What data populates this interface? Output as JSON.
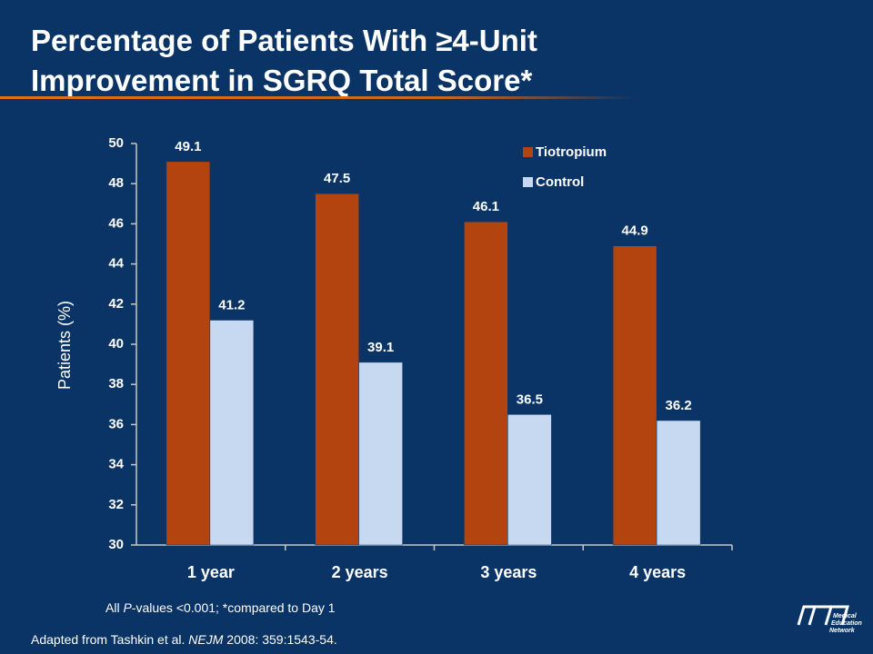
{
  "title": [
    "Percentage of Patients With ≥4-Unit",
    "Improvement in SGRQ Total Score*"
  ],
  "chart_data": {
    "type": "bar",
    "ylabel": "Patients (%)",
    "categories": [
      "1 year",
      "2 years",
      "3 years",
      "4 years"
    ],
    "series": [
      {
        "name": "Tiotropium",
        "color": "#b3430f",
        "values": [
          49.1,
          47.5,
          46.1,
          44.9
        ]
      },
      {
        "name": "Control",
        "color": "#c6d9f1",
        "values": [
          41.2,
          39.1,
          36.5,
          36.2
        ]
      }
    ],
    "ylim": [
      30,
      50
    ],
    "yticks": [
      30,
      32,
      34,
      36,
      38,
      40,
      42,
      44,
      46,
      48,
      50
    ],
    "grid": false,
    "legend": "upper right"
  },
  "footnote": [
    "All ",
    "P",
    "-values <0.001;  *compared to Day 1"
  ],
  "source": [
    "Adapted from Tashkin et al. ",
    "NEJM",
    " 2008: 359:1543-54."
  ],
  "logo_text": [
    "Medical",
    "Education",
    "Network"
  ]
}
